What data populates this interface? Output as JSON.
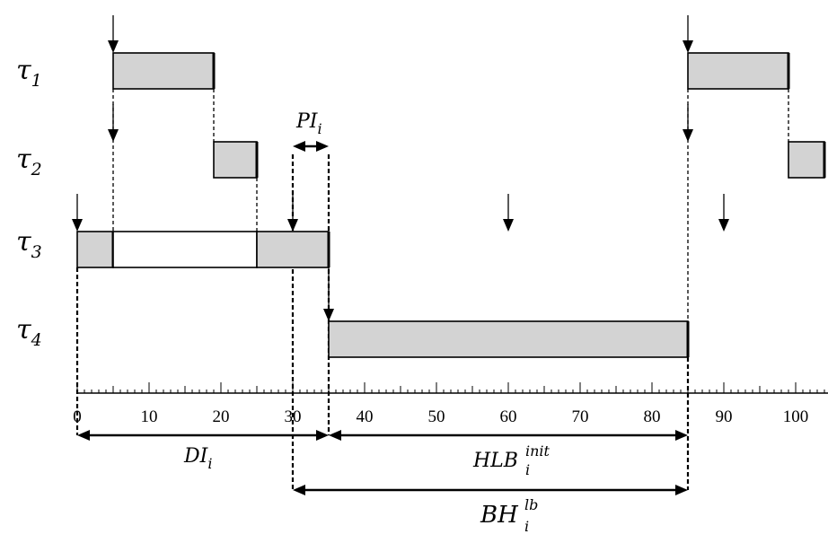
{
  "tasks": [
    {
      "label": "τ",
      "sub": "1"
    },
    {
      "label": "τ",
      "sub": "2"
    },
    {
      "label": "τ",
      "sub": "3"
    },
    {
      "label": "τ",
      "sub": "4"
    }
  ],
  "axis": {
    "ticks": [
      "0",
      "10",
      "20",
      "30",
      "40",
      "50",
      "60",
      "70",
      "80",
      "90",
      "100"
    ]
  },
  "jobs": [
    {
      "task": 1,
      "start": 5,
      "end": 19
    },
    {
      "task": 1,
      "start": 85,
      "end": 99
    },
    {
      "task": 2,
      "start": 19,
      "end": 25
    },
    {
      "task": 2,
      "start": 99,
      "end": 104
    },
    {
      "task": 3,
      "start": 0,
      "end": 5,
      "kind": "exec"
    },
    {
      "task": 3,
      "start": 5,
      "end": 25,
      "kind": "idle"
    },
    {
      "task": 3,
      "start": 25,
      "end": 35,
      "kind": "exec"
    },
    {
      "task": 4,
      "start": 35,
      "end": 85
    }
  ],
  "releases": [
    {
      "task": 1,
      "t": 5
    },
    {
      "task": 1,
      "t": 85
    },
    {
      "task": 2,
      "t": 5
    },
    {
      "task": 2,
      "t": 85
    },
    {
      "task": 3,
      "t": 0
    },
    {
      "task": 3,
      "t": 30
    },
    {
      "task": 3,
      "t": 60
    },
    {
      "task": 3,
      "t": 90
    },
    {
      "task": 4,
      "t": 35
    }
  ],
  "intervals": {
    "pi": {
      "name": "PI",
      "sub": "i",
      "start": 30,
      "end": 35
    },
    "di": {
      "name": "DI",
      "sub": "i",
      "start": 0,
      "end": 35
    },
    "hlb": {
      "name": "HLB",
      "sub": "i",
      "sup": "init",
      "start": 35,
      "end": 85
    },
    "bh": {
      "name": "BH",
      "sub": "i",
      "sup": "lb",
      "start": 30,
      "end": 85
    }
  }
}
